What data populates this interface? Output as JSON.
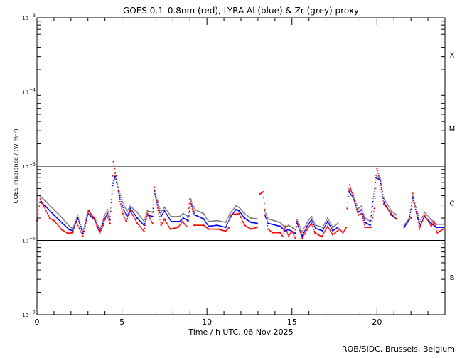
{
  "chart_data": {
    "type": "scatter",
    "title": "GOES 0.1–0.8nm (red), LYRA Al (blue) & Zr (grey) proxy",
    "xlabel": "Time / h UTC, 06 Nov 2025",
    "ylabel": "GOES Irradiance / (W m⁻²)",
    "xlim": [
      0,
      24
    ],
    "ylim": [
      1e-07,
      0.001
    ],
    "yscale": "log",
    "x_ticks": [
      "0",
      "5",
      "10",
      "15",
      "20"
    ],
    "y_ticks": [
      {
        "base": "10",
        "exp": "-7",
        "value": 1e-07
      },
      {
        "base": "10",
        "exp": "-6",
        "value": 1e-06
      },
      {
        "base": "10",
        "exp": "-5",
        "value": 1e-05
      },
      {
        "base": "10",
        "exp": "-4",
        "value": 0.0001
      },
      {
        "base": "10",
        "exp": "-3",
        "value": 0.001
      }
    ],
    "flare_classes": [
      {
        "label": "X",
        "value": 0.00032
      },
      {
        "label": "M",
        "value": 3.2e-05
      },
      {
        "label": "C",
        "value": 3.2e-06
      },
      {
        "label": "B",
        "value": 3.2e-07
      }
    ],
    "class_lines": [
      0.0001,
      1e-05,
      1e-06
    ],
    "series": [
      {
        "name": "Zr proxy (grey)",
        "color": "#808080",
        "points": [
          [
            0.2,
            3.9e-06
          ],
          [
            0.5,
            3.4e-06
          ],
          [
            1.0,
            2.6e-06
          ],
          [
            1.5,
            2e-06
          ],
          [
            1.9,
            1.55e-06
          ],
          [
            2.1,
            1.45e-06
          ],
          [
            2.4,
            2.2e-06
          ],
          [
            2.7,
            1.3e-06
          ],
          [
            3.0,
            2.5e-06
          ],
          [
            3.4,
            2e-06
          ],
          [
            3.7,
            1.4e-06
          ],
          [
            3.95,
            2.1e-06
          ],
          [
            4.15,
            2.6e-06
          ],
          [
            4.3,
            2.1e-06
          ],
          [
            4.45,
            6e-06
          ],
          [
            4.6,
            8e-06
          ],
          [
            4.85,
            4.5e-06
          ],
          [
            5.1,
            3e-06
          ],
          [
            5.3,
            2.5e-06
          ],
          [
            5.5,
            2.9e-06
          ],
          [
            5.9,
            2.4e-06
          ],
          [
            6.3,
            1.8e-06
          ],
          [
            6.5,
            2.5e-06
          ],
          [
            6.8,
            2.4e-06
          ],
          [
            6.9,
            4.8e-06
          ],
          [
            7.1,
            3.4e-06
          ],
          [
            7.3,
            2.4e-06
          ],
          [
            7.5,
            2.8e-06
          ],
          [
            7.9,
            2.1e-06
          ],
          [
            8.4,
            2.1e-06
          ],
          [
            8.6,
            2.3e-06
          ],
          [
            8.9,
            2.1e-06
          ],
          [
            9.05,
            3.6e-06
          ],
          [
            9.3,
            2.6e-06
          ],
          [
            9.8,
            2.3e-06
          ],
          [
            10.1,
            1.8e-06
          ],
          [
            10.6,
            1.85e-06
          ],
          [
            11.1,
            1.75e-06
          ],
          [
            11.35,
            2.3e-06
          ],
          [
            11.7,
            2.9e-06
          ],
          [
            11.9,
            2.8e-06
          ],
          [
            12.2,
            2.3e-06
          ],
          [
            12.6,
            2e-06
          ],
          [
            12.95,
            1.95e-06
          ],
          null,
          [
            13.4,
            2.5e-06
          ],
          [
            13.6,
            1.95e-06
          ],
          [
            14.3,
            1.75e-06
          ],
          [
            14.6,
            1.5e-06
          ],
          [
            14.8,
            1.6e-06
          ],
          [
            15.2,
            1.4e-06
          ],
          [
            15.3,
            1.9e-06
          ],
          [
            15.6,
            1.3e-06
          ],
          [
            15.9,
            1.75e-06
          ],
          [
            16.15,
            2.1e-06
          ],
          [
            16.4,
            1.6e-06
          ],
          [
            16.8,
            1.5e-06
          ],
          [
            17.1,
            2e-06
          ],
          [
            17.4,
            1.5e-06
          ],
          [
            17.7,
            1.7e-06
          ],
          null,
          [
            18.35,
            5e-06
          ],
          [
            18.6,
            4.2e-06
          ],
          [
            18.9,
            2.7e-06
          ],
          [
            19.1,
            2.9e-06
          ],
          [
            19.3,
            2e-06
          ],
          [
            19.6,
            1.8e-06
          ],
          [
            19.95,
            7.5e-06
          ],
          [
            20.2,
            7e-06
          ],
          [
            20.4,
            3.7e-06
          ],
          [
            20.85,
            2.5e-06
          ],
          [
            21.15,
            2.2e-06
          ],
          null,
          [
            21.6,
            1.6e-06
          ],
          [
            21.9,
            2e-06
          ],
          [
            22.1,
            4e-06
          ],
          [
            22.4,
            2.3e-06
          ],
          [
            22.55,
            1.8e-06
          ],
          [
            22.8,
            2.4e-06
          ],
          [
            23.2,
            1.9e-06
          ],
          [
            23.5,
            1.65e-06
          ],
          [
            23.9,
            1.65e-06
          ]
        ]
      },
      {
        "name": "LYRA Al proxy (blue)",
        "color": "#0000ff",
        "points": [
          [
            0.2,
            3.3e-06
          ],
          [
            0.5,
            2.9e-06
          ],
          [
            1.0,
            2.2e-06
          ],
          [
            1.5,
            1.7e-06
          ],
          [
            1.9,
            1.4e-06
          ],
          [
            2.1,
            1.35e-06
          ],
          [
            2.4,
            2e-06
          ],
          [
            2.7,
            1.25e-06
          ],
          [
            3.0,
            2.3e-06
          ],
          [
            3.4,
            1.9e-06
          ],
          [
            3.7,
            1.3e-06
          ],
          [
            3.95,
            1.9e-06
          ],
          [
            4.15,
            2.3e-06
          ],
          [
            4.3,
            1.9e-06
          ],
          [
            4.45,
            5.5e-06
          ],
          [
            4.6,
            7.2e-06
          ],
          [
            4.85,
            4e-06
          ],
          [
            5.1,
            2.6e-06
          ],
          [
            5.3,
            2.1e-06
          ],
          [
            5.5,
            2.7e-06
          ],
          [
            5.9,
            2e-06
          ],
          [
            6.3,
            1.6e-06
          ],
          [
            6.5,
            2.2e-06
          ],
          [
            6.8,
            2.1e-06
          ],
          [
            6.9,
            4.5e-06
          ],
          [
            7.1,
            3e-06
          ],
          [
            7.3,
            2.1e-06
          ],
          [
            7.5,
            2.5e-06
          ],
          [
            7.9,
            1.8e-06
          ],
          [
            8.4,
            1.8e-06
          ],
          [
            8.6,
            2e-06
          ],
          [
            8.9,
            1.85e-06
          ],
          [
            9.05,
            3.3e-06
          ],
          [
            9.3,
            2.2e-06
          ],
          [
            9.8,
            1.95e-06
          ],
          [
            10.1,
            1.55e-06
          ],
          [
            10.6,
            1.6e-06
          ],
          [
            11.1,
            1.5e-06
          ],
          [
            11.35,
            2e-06
          ],
          [
            11.7,
            2.6e-06
          ],
          [
            11.9,
            2.5e-06
          ],
          [
            12.2,
            2e-06
          ],
          [
            12.6,
            1.75e-06
          ],
          [
            12.95,
            1.7e-06
          ],
          null,
          [
            13.4,
            2.2e-06
          ],
          [
            13.6,
            1.7e-06
          ],
          [
            14.3,
            1.55e-06
          ],
          [
            14.6,
            1.35e-06
          ],
          [
            14.8,
            1.4e-06
          ],
          [
            15.2,
            1.25e-06
          ],
          [
            15.3,
            1.7e-06
          ],
          [
            15.6,
            1.15e-06
          ],
          [
            15.9,
            1.55e-06
          ],
          [
            16.15,
            1.9e-06
          ],
          [
            16.4,
            1.45e-06
          ],
          [
            16.8,
            1.35e-06
          ],
          [
            17.1,
            1.8e-06
          ],
          [
            17.4,
            1.35e-06
          ],
          [
            17.7,
            1.5e-06
          ],
          null,
          [
            18.35,
            4.5e-06
          ],
          [
            18.6,
            3.8e-06
          ],
          [
            18.9,
            2.4e-06
          ],
          [
            19.1,
            2.6e-06
          ],
          [
            19.3,
            1.75e-06
          ],
          [
            19.6,
            1.6e-06
          ],
          [
            19.95,
            7e-06
          ],
          [
            20.2,
            6.5e-06
          ],
          [
            20.4,
            3.3e-06
          ],
          [
            20.85,
            2.2e-06
          ],
          [
            21.15,
            1.95e-06
          ],
          null,
          [
            21.6,
            1.5e-06
          ],
          [
            21.9,
            1.9e-06
          ],
          [
            22.1,
            3.7e-06
          ],
          [
            22.4,
            2e-06
          ],
          [
            22.55,
            1.6e-06
          ],
          [
            22.8,
            2.1e-06
          ],
          [
            23.2,
            1.7e-06
          ],
          [
            23.5,
            1.5e-06
          ],
          [
            23.9,
            1.5e-06
          ]
        ]
      },
      {
        "name": "GOES 0.1-0.8nm (red)",
        "color": "#ff0000",
        "points": [
          [
            0.0,
            1.85e-06
          ],
          [
            0.2,
            3.6e-06
          ],
          [
            0.4,
            2.9e-06
          ],
          [
            0.75,
            2e-06
          ],
          [
            1.0,
            1.85e-06
          ],
          [
            1.45,
            1.4e-06
          ],
          [
            1.8,
            1.25e-06
          ],
          [
            2.1,
            1.27e-06
          ],
          [
            2.3,
            1.8e-06
          ],
          [
            2.7,
            1.14e-06
          ],
          [
            3.05,
            2.5e-06
          ],
          [
            3.35,
            2e-06
          ],
          [
            3.55,
            1.5e-06
          ],
          [
            3.7,
            1.27e-06
          ],
          [
            3.9,
            1.6e-06
          ],
          [
            4.1,
            2.2e-06
          ],
          [
            4.3,
            1.7e-06
          ],
          [
            4.45,
            7.4e-06
          ],
          [
            4.5,
            1.15e-05
          ],
          [
            4.65,
            7.4e-06
          ],
          [
            4.85,
            3.6e-06
          ],
          [
            5.05,
            2.3e-06
          ],
          [
            5.25,
            1.8e-06
          ],
          [
            5.5,
            2.5e-06
          ],
          [
            5.9,
            1.7e-06
          ],
          [
            6.3,
            1.33e-06
          ],
          [
            6.5,
            2.3e-06
          ],
          [
            6.8,
            1.7e-06
          ],
          [
            6.9,
            5.2e-06
          ],
          [
            7.1,
            2.75e-06
          ],
          [
            7.3,
            1.6e-06
          ],
          [
            7.5,
            1.94e-06
          ],
          [
            7.85,
            1.42e-06
          ],
          [
            8.3,
            1.5e-06
          ],
          [
            8.55,
            1.8e-06
          ],
          [
            8.8,
            1.55e-06
          ],
          [
            9.0,
            3.6e-06
          ],
          [
            9.2,
            2.3e-06
          ],
          [
            9.25,
            1.6e-06
          ],
          [
            9.8,
            1.6e-06
          ],
          [
            10.1,
            1.42e-06
          ],
          [
            10.65,
            1.42e-06
          ],
          [
            11.1,
            1.33e-06
          ],
          [
            11.3,
            1.5e-06
          ],
          [
            11.35,
            2.2e-06
          ],
          [
            11.9,
            2.3e-06
          ],
          [
            12.2,
            1.6e-06
          ],
          [
            12.6,
            1.42e-06
          ],
          [
            12.95,
            1.5e-06
          ],
          null,
          [
            13.1,
            4.2e-06
          ],
          [
            13.3,
            4.5e-06
          ],
          [
            13.45,
            2.2e-06
          ],
          [
            13.6,
            1.42e-06
          ],
          [
            13.85,
            1.27e-06
          ],
          [
            14.3,
            1.27e-06
          ],
          [
            14.45,
            1.14e-06
          ],
          [
            14.6,
            1.55e-06
          ],
          [
            14.8,
            1.14e-06
          ],
          [
            15.0,
            1.33e-06
          ],
          [
            15.2,
            1.07e-06
          ],
          [
            15.3,
            1.8e-06
          ],
          [
            15.6,
            1.07e-06
          ],
          [
            15.9,
            1.42e-06
          ],
          [
            16.15,
            1.7e-06
          ],
          [
            16.35,
            1.27e-06
          ],
          [
            16.75,
            1.12e-06
          ],
          [
            17.1,
            1.55e-06
          ],
          [
            17.4,
            1.19e-06
          ],
          [
            17.8,
            1.42e-06
          ],
          [
            18.0,
            1.27e-06
          ],
          [
            18.2,
            1.5e-06
          ],
          [
            18.25,
            2.7e-06
          ],
          [
            18.4,
            5.6e-06
          ],
          [
            18.6,
            3.8e-06
          ],
          [
            18.9,
            2.2e-06
          ],
          [
            19.1,
            2.3e-06
          ],
          [
            19.3,
            1.5e-06
          ],
          [
            19.65,
            1.5e-06
          ],
          [
            19.85,
            2.7e-06
          ],
          [
            20.0,
            9.3e-06
          ],
          [
            20.15,
            6.9e-06
          ],
          [
            20.4,
            3.1e-06
          ],
          [
            20.85,
            2.3e-06
          ],
          [
            21.15,
            1.94e-06
          ],
          null,
          [
            22.0,
            2e-06
          ],
          [
            22.1,
            4.3e-06
          ],
          [
            22.5,
            1.42e-06
          ],
          [
            22.8,
            2.2e-06
          ],
          [
            23.2,
            1.55e-06
          ],
          [
            23.35,
            1.8e-06
          ],
          [
            23.55,
            1.27e-06
          ],
          [
            23.9,
            1.42e-06
          ]
        ]
      }
    ]
  },
  "footer": "ROB/SIDC, Brussels, Belgium"
}
